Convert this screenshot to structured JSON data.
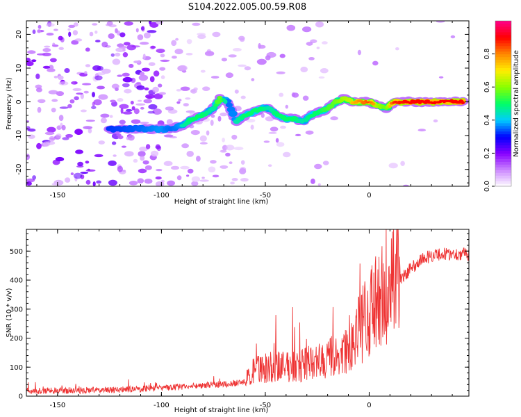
{
  "title": "S104.2022.005.00.59.R08",
  "chart_data": [
    {
      "type": "heatmap",
      "xlabel": "Height of straight line (km)",
      "ylabel": "Frequency (Hz)",
      "xlim": [
        -165,
        48
      ],
      "ylim": [
        -25,
        24
      ],
      "x_ticks": [
        -150,
        -100,
        -50,
        0
      ],
      "y_ticks": [
        -20,
        -10,
        0,
        10,
        20
      ],
      "colorbar": {
        "label": "Normalized spectral amplitude",
        "range": [
          0,
          1
        ],
        "ticks": [
          0.0,
          0.2,
          0.4,
          0.6,
          0.8
        ],
        "colors": [
          "#ffffff",
          "#cc88ff",
          "#8800ff",
          "#0000ff",
          "#00ccff",
          "#00ff66",
          "#88ff00",
          "#ffee00",
          "#ff8800",
          "#ff0000",
          "#ff0088"
        ]
      },
      "ridge": {
        "x": [
          -125,
          -110,
          -100,
          -95,
          -90,
          -85,
          -80,
          -75,
          -72,
          -68,
          -64,
          -60,
          -56,
          -52,
          -48,
          -44,
          -40,
          -36,
          -32,
          -28,
          -24,
          -20,
          -16,
          -12,
          -8,
          -4,
          0,
          4,
          8,
          12,
          20,
          30,
          40,
          46
        ],
        "frequency": [
          -8,
          -8,
          -8,
          -8,
          -7,
          -5,
          -4,
          -2,
          1,
          0,
          -6,
          -4,
          -3,
          -2,
          -2,
          -4,
          -5,
          -5,
          -6,
          -4,
          -3,
          -2,
          0,
          1,
          0,
          0,
          0,
          -1,
          -2,
          0,
          0,
          0,
          0,
          0
        ],
        "amplitude": [
          0.35,
          0.4,
          0.45,
          0.4,
          0.45,
          0.5,
          0.5,
          0.45,
          0.6,
          0.4,
          0.45,
          0.5,
          0.5,
          0.5,
          0.45,
          0.5,
          0.5,
          0.5,
          0.45,
          0.5,
          0.5,
          0.55,
          0.6,
          0.7,
          0.75,
          0.8,
          0.85,
          0.7,
          0.6,
          0.9,
          0.95,
          0.95,
          0.95,
          0.95
        ]
      }
    },
    {
      "type": "line",
      "xlabel": "Height of straight line (km)",
      "ylabel": "SNR (10 * v/v)",
      "xlim": [
        -165,
        48
      ],
      "ylim": [
        0,
        575
      ],
      "x_ticks": [
        -150,
        -100,
        -50,
        0
      ],
      "y_ticks": [
        0,
        100,
        200,
        300,
        400,
        500
      ],
      "color": "#ee3333",
      "envelope": {
        "x": [
          -165,
          -140,
          -120,
          -100,
          -90,
          -80,
          -70,
          -60,
          -55,
          -50,
          -40,
          -30,
          -20,
          -10,
          -5,
          0,
          5,
          10,
          15,
          20,
          25,
          30,
          35,
          40,
          48
        ],
        "y": [
          18,
          20,
          22,
          28,
          32,
          38,
          40,
          50,
          90,
          100,
          100,
          110,
          130,
          150,
          230,
          280,
          330,
          360,
          400,
          440,
          470,
          485,
          490,
          490,
          490
        ]
      }
    }
  ]
}
